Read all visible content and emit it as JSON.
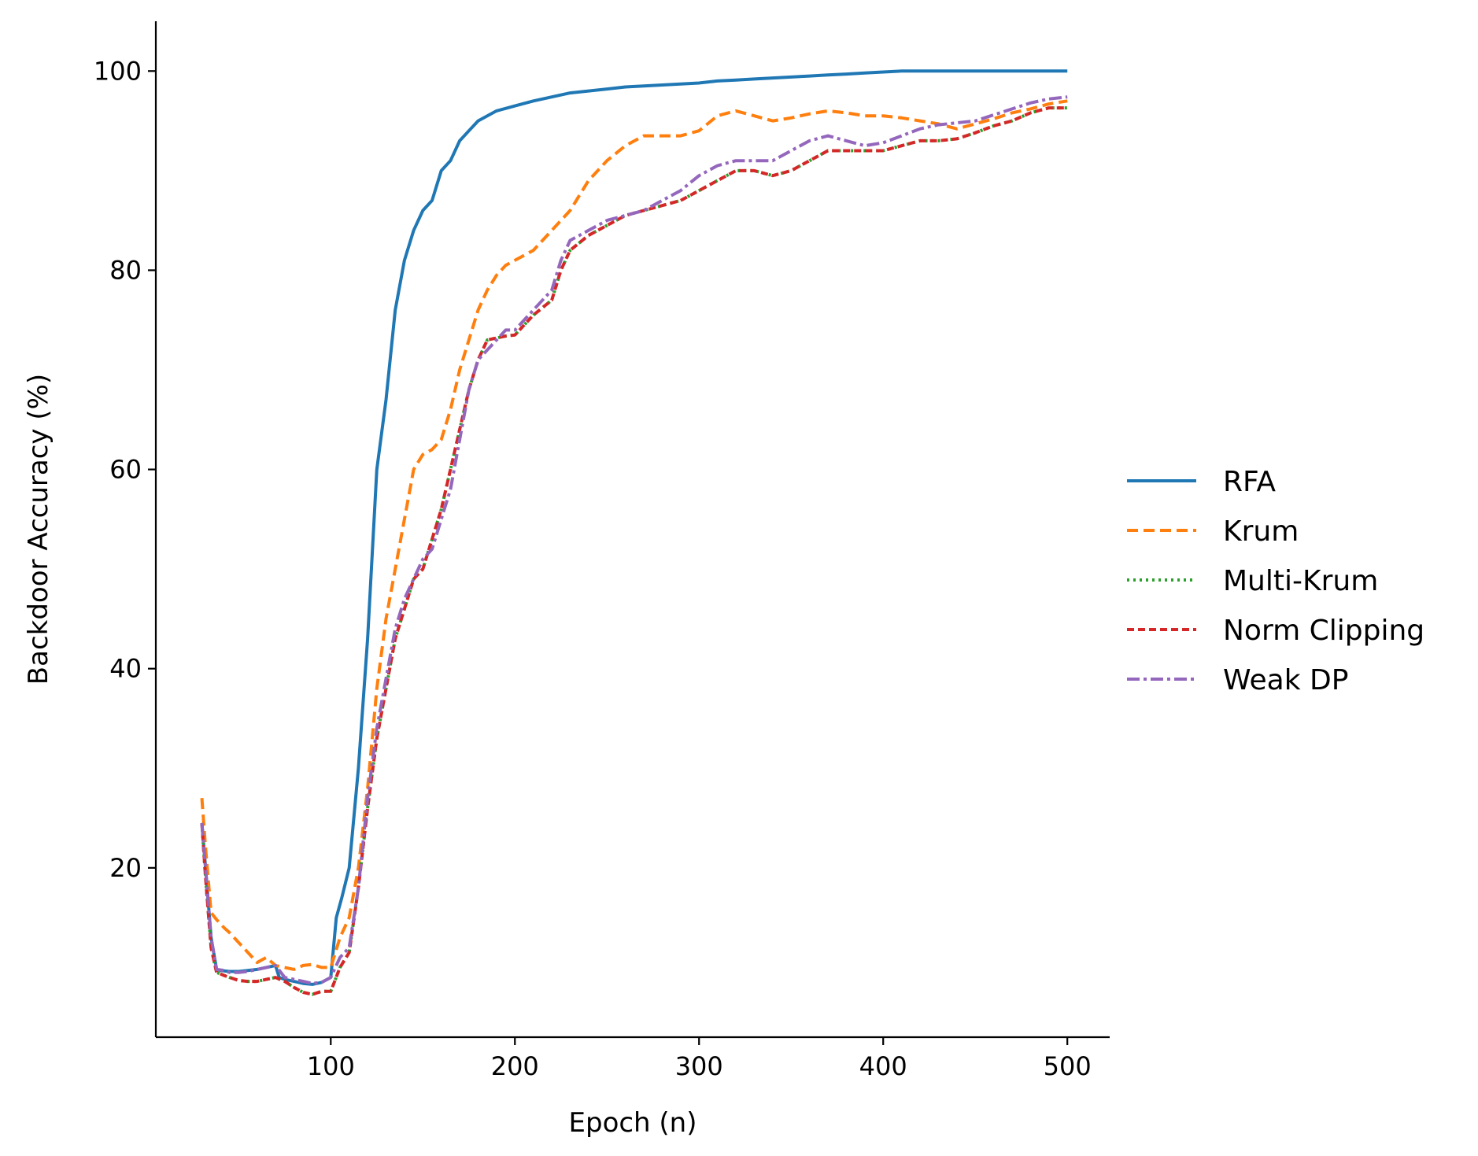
{
  "chart_data": {
    "type": "line",
    "title": "",
    "xlabel": "Epoch (n)",
    "ylabel": "Backdoor Accuracy (%)",
    "xlim": [
      5,
      523
    ],
    "ylim": [
      3,
      105
    ],
    "xticks": [
      100,
      200,
      300,
      400,
      500
    ],
    "yticks": [
      20,
      40,
      60,
      80,
      100
    ],
    "grid": false,
    "legend_position": "right",
    "series": [
      {
        "name": "RFA",
        "color": "#1f77b4",
        "dash": "solid",
        "x": [
          30,
          32,
          35,
          38,
          40,
          45,
          50,
          55,
          60,
          65,
          70,
          72,
          75,
          80,
          85,
          90,
          95,
          100,
          103,
          106,
          110,
          115,
          120,
          125,
          130,
          135,
          140,
          145,
          150,
          155,
          160,
          165,
          170,
          175,
          180,
          190,
          200,
          210,
          220,
          230,
          240,
          250,
          260,
          270,
          280,
          290,
          300,
          310,
          320,
          330,
          340,
          350,
          360,
          370,
          380,
          390,
          400,
          410,
          420,
          450,
          500
        ],
        "y": [
          24.5,
          20,
          13,
          9.8,
          9.7,
          9.6,
          9.6,
          9.7,
          9.8,
          10,
          10.2,
          9,
          8.8,
          8.6,
          8.4,
          8.3,
          8.5,
          9,
          15,
          17,
          20,
          30,
          43,
          60,
          67,
          76,
          81,
          84,
          86,
          87,
          90,
          91,
          93,
          94,
          95,
          96,
          96.5,
          97,
          97.4,
          97.8,
          98,
          98.2,
          98.4,
          98.5,
          98.6,
          98.7,
          98.8,
          99,
          99.1,
          99.2,
          99.3,
          99.4,
          99.5,
          99.6,
          99.7,
          99.8,
          99.9,
          100,
          100,
          100,
          100
        ]
      },
      {
        "name": "Krum",
        "color": "#ff7f0e",
        "dash": "14,7",
        "x": [
          30,
          32,
          35,
          38,
          42,
          45,
          50,
          55,
          60,
          65,
          70,
          75,
          80,
          85,
          90,
          95,
          100,
          105,
          110,
          115,
          120,
          125,
          130,
          135,
          140,
          145,
          150,
          155,
          160,
          165,
          170,
          175,
          180,
          185,
          190,
          195,
          200,
          210,
          220,
          230,
          240,
          250,
          260,
          270,
          280,
          290,
          300,
          310,
          320,
          330,
          340,
          350,
          360,
          370,
          380,
          390,
          400,
          410,
          420,
          430,
          440,
          450,
          460,
          470,
          480,
          490,
          500
        ],
        "y": [
          27,
          22,
          15.5,
          14.8,
          14,
          13.5,
          12.5,
          11.5,
          10.5,
          11,
          10.2,
          10,
          9.8,
          10.2,
          10.3,
          10,
          10,
          13,
          15,
          20,
          28,
          38,
          45,
          50,
          55,
          60,
          61.5,
          62,
          63,
          66,
          70,
          73,
          76,
          78,
          79.5,
          80.5,
          81,
          82,
          84,
          86,
          89,
          91,
          92.5,
          93.5,
          93.5,
          93.5,
          94,
          95.5,
          96,
          95.5,
          95,
          95.3,
          95.7,
          96,
          95.8,
          95.5,
          95.5,
          95.3,
          95,
          94.7,
          94.2,
          94.7,
          95.2,
          95.8,
          96.2,
          96.7,
          97
        ]
      },
      {
        "name": "Multi-Krum",
        "color": "#2ca02c",
        "dash": "3,5",
        "x": [
          30,
          32,
          35,
          38,
          42,
          45,
          50,
          55,
          60,
          65,
          70,
          75,
          80,
          85,
          90,
          95,
          100,
          105,
          110,
          115,
          120,
          125,
          130,
          135,
          140,
          145,
          150,
          155,
          160,
          165,
          170,
          175,
          180,
          185,
          190,
          195,
          200,
          210,
          220,
          225,
          230,
          240,
          250,
          260,
          270,
          280,
          290,
          300,
          310,
          320,
          330,
          340,
          350,
          360,
          370,
          380,
          390,
          400,
          410,
          420,
          430,
          440,
          450,
          460,
          470,
          480,
          490,
          500
        ],
        "y": [
          24.5,
          19,
          12,
          9.5,
          9.2,
          9,
          8.7,
          8.6,
          8.6,
          8.8,
          9,
          8.6,
          8,
          7.5,
          7.3,
          7.6,
          7.6,
          10,
          11.5,
          18,
          26,
          33,
          38,
          43,
          46,
          49,
          50,
          53,
          56,
          60,
          64,
          68,
          71,
          73,
          73.2,
          73.4,
          73.5,
          75.5,
          77,
          80,
          82,
          83.5,
          84.5,
          85.5,
          86,
          86.5,
          87,
          88,
          89,
          90,
          90,
          89.5,
          90,
          91,
          92,
          92,
          92,
          92,
          92.5,
          93,
          93,
          93.2,
          93.8,
          94.5,
          95,
          95.8,
          96.3,
          96.3
        ]
      },
      {
        "name": "Norm Clipping",
        "color": "#d62728",
        "dash": "9,5",
        "x": [
          30,
          32,
          35,
          38,
          42,
          45,
          50,
          55,
          60,
          65,
          70,
          75,
          80,
          85,
          90,
          95,
          100,
          105,
          110,
          115,
          120,
          125,
          130,
          135,
          140,
          145,
          150,
          155,
          160,
          165,
          170,
          175,
          180,
          185,
          190,
          195,
          200,
          210,
          220,
          225,
          230,
          240,
          250,
          260,
          270,
          280,
          290,
          300,
          310,
          320,
          330,
          340,
          350,
          360,
          370,
          380,
          390,
          400,
          410,
          420,
          430,
          440,
          450,
          460,
          470,
          480,
          490,
          500
        ],
        "y": [
          24.5,
          19,
          12,
          9.5,
          9.2,
          9,
          8.7,
          8.6,
          8.6,
          8.8,
          9,
          8.6,
          8,
          7.5,
          7.3,
          7.6,
          7.6,
          10,
          11.5,
          18,
          26,
          33,
          38,
          43,
          46,
          49,
          50,
          53,
          56,
          60,
          64,
          68,
          71,
          73,
          73.2,
          73.4,
          73.5,
          75.5,
          77,
          80,
          82,
          83.5,
          84.5,
          85.5,
          86,
          86.5,
          87,
          88,
          89,
          90,
          90,
          89.5,
          90,
          91,
          92,
          92,
          92,
          92,
          92.5,
          93,
          93,
          93.2,
          93.8,
          94.5,
          95,
          95.8,
          96.3,
          96.3
        ]
      },
      {
        "name": "Weak DP",
        "color": "#9467bd",
        "dash": "16,5,4,5",
        "x": [
          30,
          32,
          35,
          38,
          42,
          45,
          50,
          55,
          60,
          65,
          70,
          75,
          80,
          85,
          90,
          95,
          100,
          105,
          110,
          115,
          120,
          125,
          130,
          135,
          140,
          145,
          150,
          155,
          160,
          165,
          170,
          175,
          180,
          185,
          190,
          195,
          200,
          210,
          220,
          225,
          230,
          240,
          250,
          260,
          270,
          280,
          290,
          300,
          310,
          320,
          330,
          340,
          350,
          360,
          370,
          380,
          390,
          400,
          410,
          420,
          430,
          440,
          450,
          460,
          470,
          480,
          490,
          500
        ],
        "y": [
          24.5,
          20,
          13,
          9.8,
          9.7,
          9.5,
          9.5,
          9.6,
          9.8,
          10,
          10.2,
          9,
          8.8,
          8.6,
          8.4,
          8.5,
          9,
          11,
          12,
          18,
          27,
          34,
          39,
          44,
          47,
          49,
          51,
          52,
          55,
          58,
          63,
          68,
          71,
          72,
          73,
          74,
          74,
          76,
          78,
          81,
          83,
          84,
          85,
          85.5,
          86,
          87,
          88,
          89.5,
          90.5,
          91,
          91,
          91,
          92,
          93,
          93.5,
          93,
          92.5,
          92.8,
          93.5,
          94.2,
          94.6,
          94.8,
          95,
          95.6,
          96.2,
          96.8,
          97.2,
          97.4
        ]
      }
    ]
  }
}
